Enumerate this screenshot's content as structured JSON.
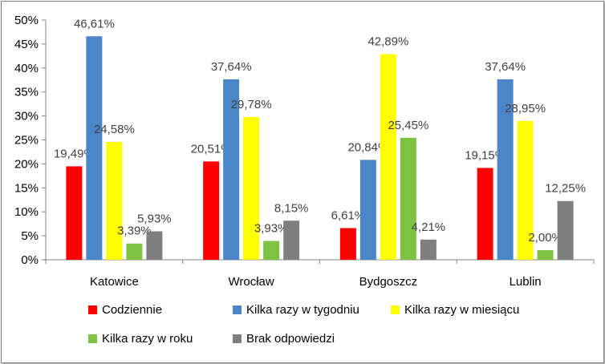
{
  "chart_data": {
    "type": "bar",
    "categories": [
      "Katowice",
      "Wrocław",
      "Bydgoszcz",
      "Lublin"
    ],
    "series": [
      {
        "name": "Codziennie",
        "color": "#ff0000",
        "values": [
          19.49,
          20.51,
          6.61,
          19.15
        ],
        "labels": [
          "19,49%",
          "20,51%",
          "6,61%",
          "19,15%"
        ]
      },
      {
        "name": "Kilka razy w tygodniu",
        "color": "#4a86c8",
        "values": [
          46.61,
          37.64,
          20.84,
          37.64
        ],
        "labels": [
          "46,61%",
          "37,64%",
          "20,84%",
          "37,64%"
        ]
      },
      {
        "name": "Kilka razy w miesiącu",
        "color": "#ffff00",
        "values": [
          24.58,
          29.78,
          42.89,
          28.95
        ],
        "labels": [
          "24,58%",
          "29,78%",
          "42,89%",
          "28,95%"
        ]
      },
      {
        "name": "Kilka razy w roku",
        "color": "#7dc242",
        "values": [
          3.39,
          3.93,
          25.45,
          2.0
        ],
        "labels": [
          "3,39%",
          "3,93%",
          "25,45%",
          "2,00%"
        ]
      },
      {
        "name": "Brak odpowiedzi",
        "color": "#7f7f7f",
        "values": [
          5.93,
          8.15,
          4.21,
          12.25
        ],
        "labels": [
          "5,93%",
          "8,15%",
          "4,21%",
          "12,25%"
        ]
      }
    ],
    "ylim": [
      0,
      50
    ],
    "yticks": [
      "0%",
      "5%",
      "10%",
      "15%",
      "20%",
      "25%",
      "30%",
      "35%",
      "40%",
      "45%",
      "50%"
    ],
    "grid": false,
    "legend_position": "bottom"
  }
}
